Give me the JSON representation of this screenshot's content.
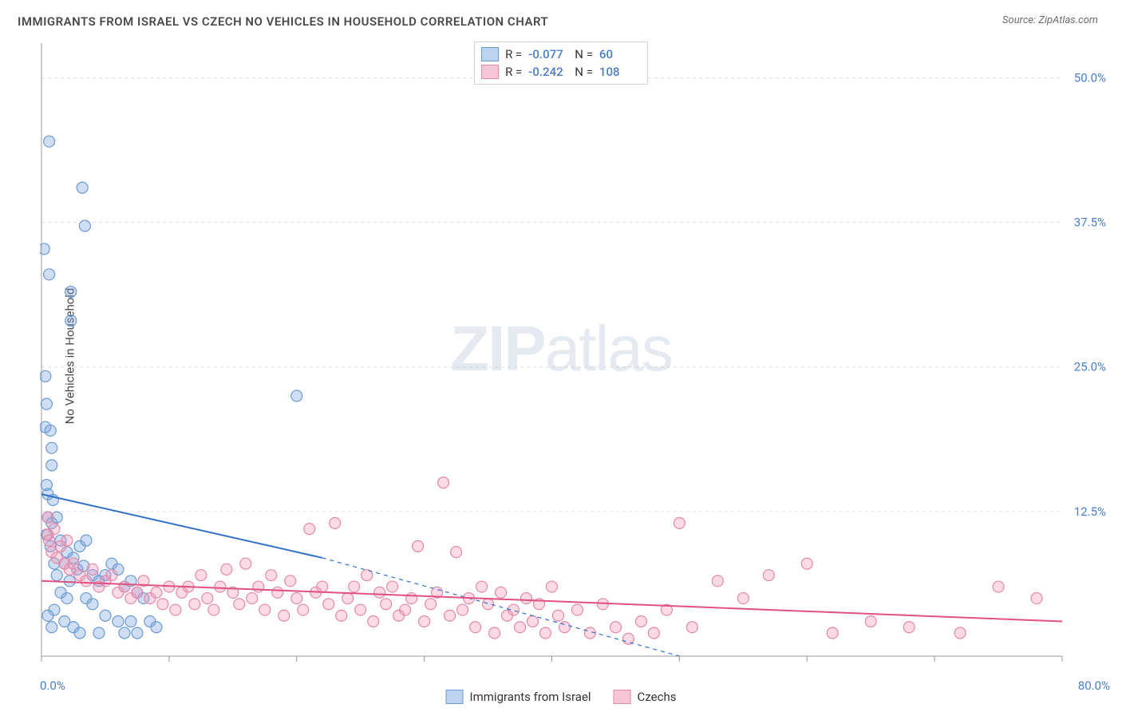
{
  "title": "IMMIGRANTS FROM ISRAEL VS CZECH NO VEHICLES IN HOUSEHOLD CORRELATION CHART",
  "source": "Source: ZipAtlas.com",
  "ylabel": "No Vehicles in Household",
  "watermark_bold": "ZIP",
  "watermark_rest": "atlas",
  "chart": {
    "type": "scatter",
    "xlim": [
      0,
      80
    ],
    "ylim": [
      0,
      53
    ],
    "x_ticks": [
      0,
      10,
      20,
      30,
      40,
      50,
      60,
      70,
      80
    ],
    "y_gridlines": [
      12.5,
      25.0,
      37.5,
      50.0
    ],
    "y_tick_labels": [
      "12.5%",
      "25.0%",
      "37.5%",
      "50.0%"
    ],
    "x_axis_start_label": "0.0%",
    "x_axis_end_label": "80.0%",
    "background_color": "#ffffff",
    "grid_color": "#e0e0e0",
    "grid_dash": "4,4",
    "axis_label_color": "#4a7cc7",
    "marker_radius": 7,
    "marker_stroke_width": 1.2,
    "series": [
      {
        "name": "Immigrants from Israel",
        "legend_label": "Immigrants from Israel",
        "fill": "rgba(120,160,220,0.35)",
        "stroke": "#6a9ad4",
        "swatch_fill": "#bcd4f0",
        "swatch_border": "#6a9ad4",
        "R": "-0.077",
        "N": "60",
        "trend": {
          "solid": {
            "x1": 0,
            "y1": 14.0,
            "x2": 22,
            "y2": 8.5
          },
          "dashed": {
            "x1": 22,
            "y1": 8.5,
            "x2": 50,
            "y2": 0
          },
          "color": "#2f6fc5",
          "width": 2,
          "dash_pattern": "5,5"
        },
        "points": [
          [
            0.2,
            35.2
          ],
          [
            0.6,
            44.5
          ],
          [
            3.2,
            40.5
          ],
          [
            3.4,
            37.2
          ],
          [
            0.3,
            24.2
          ],
          [
            0.6,
            33.0
          ],
          [
            2.3,
            31.5
          ],
          [
            2.3,
            29.0
          ],
          [
            0.4,
            21.8
          ],
          [
            0.3,
            19.8
          ],
          [
            0.7,
            19.5
          ],
          [
            0.8,
            18.0
          ],
          [
            0.8,
            16.5
          ],
          [
            0.4,
            14.8
          ],
          [
            0.5,
            14.0
          ],
          [
            0.9,
            13.5
          ],
          [
            20.0,
            22.5
          ],
          [
            0.5,
            12.0
          ],
          [
            0.8,
            11.5
          ],
          [
            1.2,
            12.0
          ],
          [
            0.4,
            10.5
          ],
          [
            1.5,
            10.0
          ],
          [
            0.7,
            9.5
          ],
          [
            2.0,
            9.0
          ],
          [
            1.0,
            8.0
          ],
          [
            2.5,
            8.5
          ],
          [
            3.0,
            9.5
          ],
          [
            3.5,
            10.0
          ],
          [
            1.8,
            8.0
          ],
          [
            2.8,
            7.5
          ],
          [
            3.3,
            7.8
          ],
          [
            4.0,
            7.0
          ],
          [
            1.2,
            7.0
          ],
          [
            2.2,
            6.5
          ],
          [
            4.5,
            6.5
          ],
          [
            5.0,
            7.0
          ],
          [
            5.5,
            8.0
          ],
          [
            6.0,
            7.5
          ],
          [
            6.5,
            6.0
          ],
          [
            7.0,
            6.5
          ],
          [
            7.5,
            5.5
          ],
          [
            8.0,
            5.0
          ],
          [
            1.5,
            5.5
          ],
          [
            2.0,
            5.0
          ],
          [
            3.5,
            5.0
          ],
          [
            4.0,
            4.5
          ],
          [
            1.0,
            4.0
          ],
          [
            0.5,
            3.5
          ],
          [
            5.0,
            3.5
          ],
          [
            6.0,
            3.0
          ],
          [
            7.0,
            3.0
          ],
          [
            1.8,
            3.0
          ],
          [
            8.5,
            3.0
          ],
          [
            9.0,
            2.5
          ],
          [
            0.8,
            2.5
          ],
          [
            2.5,
            2.5
          ],
          [
            3.0,
            2.0
          ],
          [
            4.5,
            2.0
          ],
          [
            6.5,
            2.0
          ],
          [
            7.5,
            2.0
          ]
        ]
      },
      {
        "name": "Czechs",
        "legend_label": "Czechs",
        "fill": "rgba(240,150,180,0.35)",
        "stroke": "#e289a8",
        "swatch_fill": "#f6c6d6",
        "swatch_border": "#e289a8",
        "R": "-0.242",
        "N": "108",
        "trend": {
          "solid": {
            "x1": 0,
            "y1": 6.5,
            "x2": 80,
            "y2": 3.0
          },
          "color": "#e05080",
          "width": 2
        },
        "points": [
          [
            0.5,
            12.0
          ],
          [
            0.5,
            10.5
          ],
          [
            0.6,
            10.0
          ],
          [
            0.8,
            9.0
          ],
          [
            1.0,
            11.0
          ],
          [
            1.2,
            8.5
          ],
          [
            1.5,
            9.5
          ],
          [
            1.8,
            8.0
          ],
          [
            2.0,
            10.0
          ],
          [
            2.2,
            7.5
          ],
          [
            2.5,
            8.0
          ],
          [
            3.0,
            7.0
          ],
          [
            3.5,
            6.5
          ],
          [
            4.0,
            7.5
          ],
          [
            4.5,
            6.0
          ],
          [
            5.0,
            6.5
          ],
          [
            5.5,
            7.0
          ],
          [
            6.0,
            5.5
          ],
          [
            6.5,
            6.0
          ],
          [
            7.0,
            5.0
          ],
          [
            7.5,
            5.5
          ],
          [
            8.0,
            6.5
          ],
          [
            8.5,
            5.0
          ],
          [
            9.0,
            5.5
          ],
          [
            9.5,
            4.5
          ],
          [
            10.0,
            6.0
          ],
          [
            10.5,
            4.0
          ],
          [
            11.0,
            5.5
          ],
          [
            11.5,
            6.0
          ],
          [
            12.0,
            4.5
          ],
          [
            12.5,
            7.0
          ],
          [
            13.0,
            5.0
          ],
          [
            13.5,
            4.0
          ],
          [
            14.0,
            6.0
          ],
          [
            14.5,
            7.5
          ],
          [
            15.0,
            5.5
          ],
          [
            15.5,
            4.5
          ],
          [
            16.0,
            8.0
          ],
          [
            16.5,
            5.0
          ],
          [
            17.0,
            6.0
          ],
          [
            17.5,
            4.0
          ],
          [
            18.0,
            7.0
          ],
          [
            18.5,
            5.5
          ],
          [
            19.0,
            3.5
          ],
          [
            19.5,
            6.5
          ],
          [
            20.0,
            5.0
          ],
          [
            20.5,
            4.0
          ],
          [
            21.0,
            11.0
          ],
          [
            21.5,
            5.5
          ],
          [
            22.0,
            6.0
          ],
          [
            22.5,
            4.5
          ],
          [
            23.0,
            11.5
          ],
          [
            23.5,
            3.5
          ],
          [
            24.0,
            5.0
          ],
          [
            24.5,
            6.0
          ],
          [
            25.0,
            4.0
          ],
          [
            25.5,
            7.0
          ],
          [
            26.0,
            3.0
          ],
          [
            26.5,
            5.5
          ],
          [
            27.0,
            4.5
          ],
          [
            27.5,
            6.0
          ],
          [
            28.0,
            3.5
          ],
          [
            28.5,
            4.0
          ],
          [
            29.0,
            5.0
          ],
          [
            29.5,
            9.5
          ],
          [
            30.0,
            3.0
          ],
          [
            30.5,
            4.5
          ],
          [
            31.0,
            5.5
          ],
          [
            31.5,
            15.0
          ],
          [
            32.0,
            3.5
          ],
          [
            32.5,
            9.0
          ],
          [
            33.0,
            4.0
          ],
          [
            33.5,
            5.0
          ],
          [
            34.0,
            2.5
          ],
          [
            34.5,
            6.0
          ],
          [
            35.0,
            4.5
          ],
          [
            35.5,
            2.0
          ],
          [
            36.0,
            5.5
          ],
          [
            36.5,
            3.5
          ],
          [
            37.0,
            4.0
          ],
          [
            37.5,
            2.5
          ],
          [
            38.0,
            5.0
          ],
          [
            38.5,
            3.0
          ],
          [
            39.0,
            4.5
          ],
          [
            39.5,
            2.0
          ],
          [
            40.0,
            6.0
          ],
          [
            40.5,
            3.5
          ],
          [
            41.0,
            2.5
          ],
          [
            42.0,
            4.0
          ],
          [
            43.0,
            2.0
          ],
          [
            44.0,
            4.5
          ],
          [
            45.0,
            2.5
          ],
          [
            46.0,
            1.5
          ],
          [
            47.0,
            3.0
          ],
          [
            48.0,
            2.0
          ],
          [
            49.0,
            4.0
          ],
          [
            50.0,
            11.5
          ],
          [
            51.0,
            2.5
          ],
          [
            53.0,
            6.5
          ],
          [
            55.0,
            5.0
          ],
          [
            57.0,
            7.0
          ],
          [
            60.0,
            8.0
          ],
          [
            62.0,
            2.0
          ],
          [
            65.0,
            3.0
          ],
          [
            68.0,
            2.5
          ],
          [
            72.0,
            2.0
          ],
          [
            75.0,
            6.0
          ],
          [
            78.0,
            5.0
          ]
        ]
      }
    ]
  },
  "legend_top": {
    "rows": [
      {
        "swatch_fill": "#bcd4f0",
        "swatch_border": "#6a9ad4",
        "R_label": "R =",
        "R": "-0.077",
        "N_label": "N =",
        "N": "60"
      },
      {
        "swatch_fill": "#f6c6d6",
        "swatch_border": "#e289a8",
        "R_label": "R =",
        "R": "-0.242",
        "N_label": "N =",
        "N": "108"
      }
    ]
  },
  "legend_bottom": {
    "items": [
      {
        "swatch_fill": "#bcd4f0",
        "swatch_border": "#6a9ad4",
        "label": "Immigrants from Israel"
      },
      {
        "swatch_fill": "#f6c6d6",
        "swatch_border": "#e289a8",
        "label": "Czechs"
      }
    ]
  }
}
